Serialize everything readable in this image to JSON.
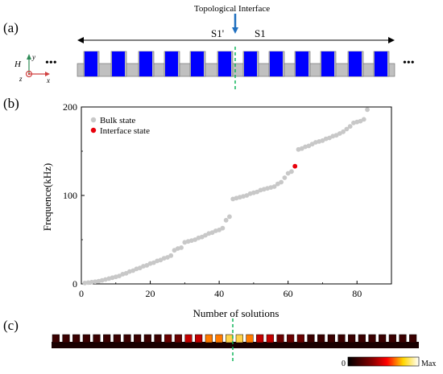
{
  "panels": {
    "a": {
      "label": "(a)",
      "topological_interface": "Topological Interface",
      "left_segment": "S1'",
      "right_segment": "S1",
      "axis_h": "H",
      "axis_y": "y",
      "axis_z": "z",
      "axis_x": "x",
      "ellipsis": "•••"
    },
    "b": {
      "label": "(b)"
    },
    "c": {
      "label": "(c)",
      "colorbar_min": "0",
      "colorbar_max": "Max"
    }
  },
  "colors": {
    "bulk": "#c8c8c8",
    "interface": "#e8000b",
    "blue": "#0000ff",
    "gray": "#c0c0c0",
    "interface_line": "#00b050",
    "arrow_blue": "#1f6fbf"
  },
  "chart_data": {
    "type": "scatter",
    "xlabel": "Number of solutions",
    "ylabel": "Frequence(kHz)",
    "xlim": [
      0,
      90
    ],
    "ylim": [
      0,
      200
    ],
    "xticks": [
      0,
      20,
      40,
      60,
      80
    ],
    "yticks": [
      0,
      100,
      200
    ],
    "legend_position": "top-left",
    "series": [
      {
        "name": "Bulk state",
        "x": [
          1,
          2,
          3,
          4,
          5,
          6,
          7,
          8,
          9,
          10,
          11,
          12,
          13,
          14,
          15,
          16,
          17,
          18,
          19,
          20,
          21,
          22,
          23,
          24,
          25,
          26,
          27,
          28,
          29,
          30,
          31,
          32,
          33,
          34,
          35,
          36,
          37,
          38,
          39,
          40,
          41,
          42,
          43,
          44,
          45,
          46,
          47,
          48,
          49,
          50,
          51,
          52,
          53,
          54,
          55,
          56,
          57,
          58,
          59,
          60,
          61,
          63,
          64,
          65,
          66,
          67,
          68,
          69,
          70,
          71,
          72,
          73,
          74,
          75,
          76,
          77,
          78,
          79,
          80,
          81,
          82,
          83
        ],
        "y": [
          1,
          1.5,
          2,
          2.5,
          3,
          4,
          5,
          6,
          7,
          8,
          9,
          11,
          12,
          14,
          15,
          17,
          18,
          20,
          21,
          23,
          24,
          26,
          27,
          29,
          30,
          32,
          38,
          40,
          41,
          47,
          48,
          49,
          50,
          52,
          53,
          55,
          57,
          58,
          60,
          61,
          63,
          72,
          76,
          96,
          97,
          98,
          99,
          100,
          102,
          103,
          104,
          106,
          107,
          108,
          109,
          110,
          113,
          115,
          120,
          125,
          127,
          152,
          153,
          155,
          156,
          158,
          160,
          161,
          162,
          164,
          165,
          167,
          168,
          170,
          172,
          175,
          178,
          182,
          183,
          184,
          186,
          197
        ]
      },
      {
        "name": "Interface state",
        "x": [
          62
        ],
        "y": [
          133
        ]
      }
    ]
  }
}
